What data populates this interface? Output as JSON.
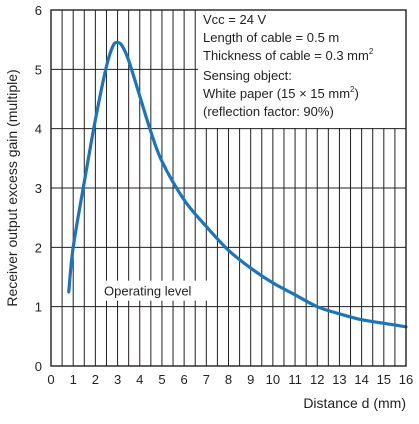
{
  "chart_data": {
    "type": "line",
    "xlabel": "Distance d (mm)",
    "ylabel": "Receiver output excess gain (multiple)",
    "xlim": [
      0,
      16
    ],
    "ylim": [
      0,
      6
    ],
    "x_ticks": [
      "0",
      "1",
      "2",
      "3",
      "4",
      "5",
      "6",
      "7",
      "8",
      "9",
      "10",
      "11",
      "12",
      "13",
      "14",
      "15",
      "16"
    ],
    "y_ticks": [
      "0",
      "1",
      "2",
      "3",
      "4",
      "5",
      "6"
    ],
    "grid": true,
    "grid_x_step": 0.5,
    "grid_y_step": 1,
    "line_color": "#1b75bc",
    "reference_line": {
      "label": "Operating level",
      "y": 1
    },
    "annotation": {
      "vcc": "Vcc = 24 V",
      "cable_length": "Length of cable = 0.5 m",
      "cable_thickness": "Thickness of cable = 0.3 mm",
      "cable_thickness_sup": "2",
      "object_label": "Sensing object:",
      "object_desc": "White paper (15 × 15 mm",
      "object_desc_sup": "2",
      "object_desc_end": ")",
      "reflection": "(reflection factor: 90%)"
    },
    "series": [
      {
        "x": [
          0.8,
          1.0,
          1.5,
          2.0,
          2.5,
          2.8,
          3.0,
          3.2,
          3.5,
          4.0,
          4.5,
          5.0,
          6.0,
          7.0,
          8.0,
          9.0,
          10.0,
          11.0,
          12.0,
          13.0,
          14.0,
          15.0,
          16.0
        ],
        "values": [
          1.25,
          2.0,
          3.1,
          4.15,
          5.05,
          5.4,
          5.45,
          5.4,
          5.15,
          4.55,
          3.95,
          3.45,
          2.8,
          2.35,
          1.95,
          1.65,
          1.4,
          1.2,
          1.0,
          0.88,
          0.78,
          0.72,
          0.66
        ]
      }
    ]
  }
}
